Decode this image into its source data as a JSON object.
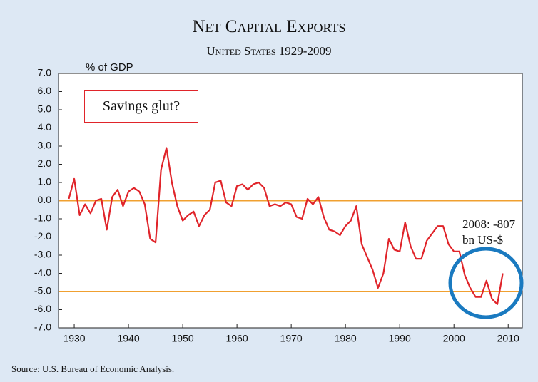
{
  "chart_data": {
    "type": "line",
    "title": "Net Capital Exports",
    "subtitle": "United States 1929-2009",
    "y_label": "% of GDP",
    "source": "Source: U.S. Bureau of Economic Analysis.",
    "annotations": [
      "Savings glut?",
      "2008: -807 bn US-$"
    ],
    "x": [
      1929,
      1930,
      1931,
      1932,
      1933,
      1934,
      1935,
      1936,
      1937,
      1938,
      1939,
      1940,
      1941,
      1942,
      1943,
      1944,
      1945,
      1946,
      1947,
      1948,
      1949,
      1950,
      1951,
      1952,
      1953,
      1954,
      1955,
      1956,
      1957,
      1958,
      1959,
      1960,
      1961,
      1962,
      1963,
      1964,
      1965,
      1966,
      1967,
      1968,
      1969,
      1970,
      1971,
      1972,
      1973,
      1974,
      1975,
      1976,
      1977,
      1978,
      1979,
      1980,
      1981,
      1982,
      1983,
      1984,
      1985,
      1986,
      1987,
      1988,
      1989,
      1990,
      1991,
      1992,
      1993,
      1994,
      1995,
      1996,
      1997,
      1998,
      1999,
      2000,
      2001,
      2002,
      2003,
      2004,
      2005,
      2006,
      2007,
      2008,
      2009
    ],
    "series": [
      {
        "color": "#e0242a",
        "values": [
          0.1,
          1.2,
          -0.8,
          -0.2,
          -0.7,
          0.0,
          0.1,
          -1.6,
          0.2,
          0.6,
          -0.3,
          0.5,
          0.7,
          0.5,
          -0.2,
          -2.1,
          -2.3,
          1.7,
          2.9,
          1.0,
          -0.3,
          -1.1,
          -0.8,
          -0.6,
          -1.4,
          -0.8,
          -0.5,
          1.0,
          1.1,
          -0.1,
          -0.3,
          0.8,
          0.9,
          0.6,
          0.9,
          1.0,
          0.7,
          -0.3,
          -0.2,
          -0.3,
          -0.1,
          -0.2,
          -0.9,
          -1.0,
          0.1,
          -0.2,
          0.2,
          -0.9,
          -1.6,
          -1.7,
          -1.9,
          -1.4,
          -1.1,
          -0.3,
          -2.4,
          -3.1,
          -3.8,
          -4.8,
          -4.0,
          -2.1,
          -2.7,
          -2.8,
          -1.2,
          -2.5,
          -3.2,
          -3.2,
          -2.2,
          -1.8,
          -1.4,
          -1.4,
          -2.4,
          -2.8,
          -2.8,
          -4.1,
          -4.8,
          -5.3,
          -5.3,
          -4.4,
          -5.4,
          -5.7,
          -4.0
        ]
      }
    ],
    "reference_lines": [
      0,
      -5
    ],
    "reference_color": "#f0a030",
    "xlim": [
      1927.1,
      2012.6
    ],
    "xticks": [
      1930,
      1940,
      1950,
      1960,
      1970,
      1980,
      1990,
      2000,
      2010
    ],
    "ylim": [
      -7,
      7
    ],
    "yticks": [
      {
        "value": 7,
        "label": "7.0"
      },
      {
        "value": 6,
        "label": "6.0"
      },
      {
        "value": 5,
        "label": "5.0"
      },
      {
        "value": 4,
        "label": "4.0"
      },
      {
        "value": 3,
        "label": "3.0"
      },
      {
        "value": 2,
        "label": "2.0"
      },
      {
        "value": 1,
        "label": "1.0"
      },
      {
        "value": 0,
        "label": "0.0"
      },
      {
        "value": -1,
        "label": "-1.0"
      },
      {
        "value": -2,
        "label": "-2.0"
      },
      {
        "value": -3,
        "label": "-3.0"
      },
      {
        "value": -4,
        "label": "-4.0"
      },
      {
        "value": -5,
        "label": "-5.0"
      },
      {
        "value": -6,
        "label": "-6.0"
      },
      {
        "value": -7,
        "label": "-7.0"
      }
    ]
  }
}
